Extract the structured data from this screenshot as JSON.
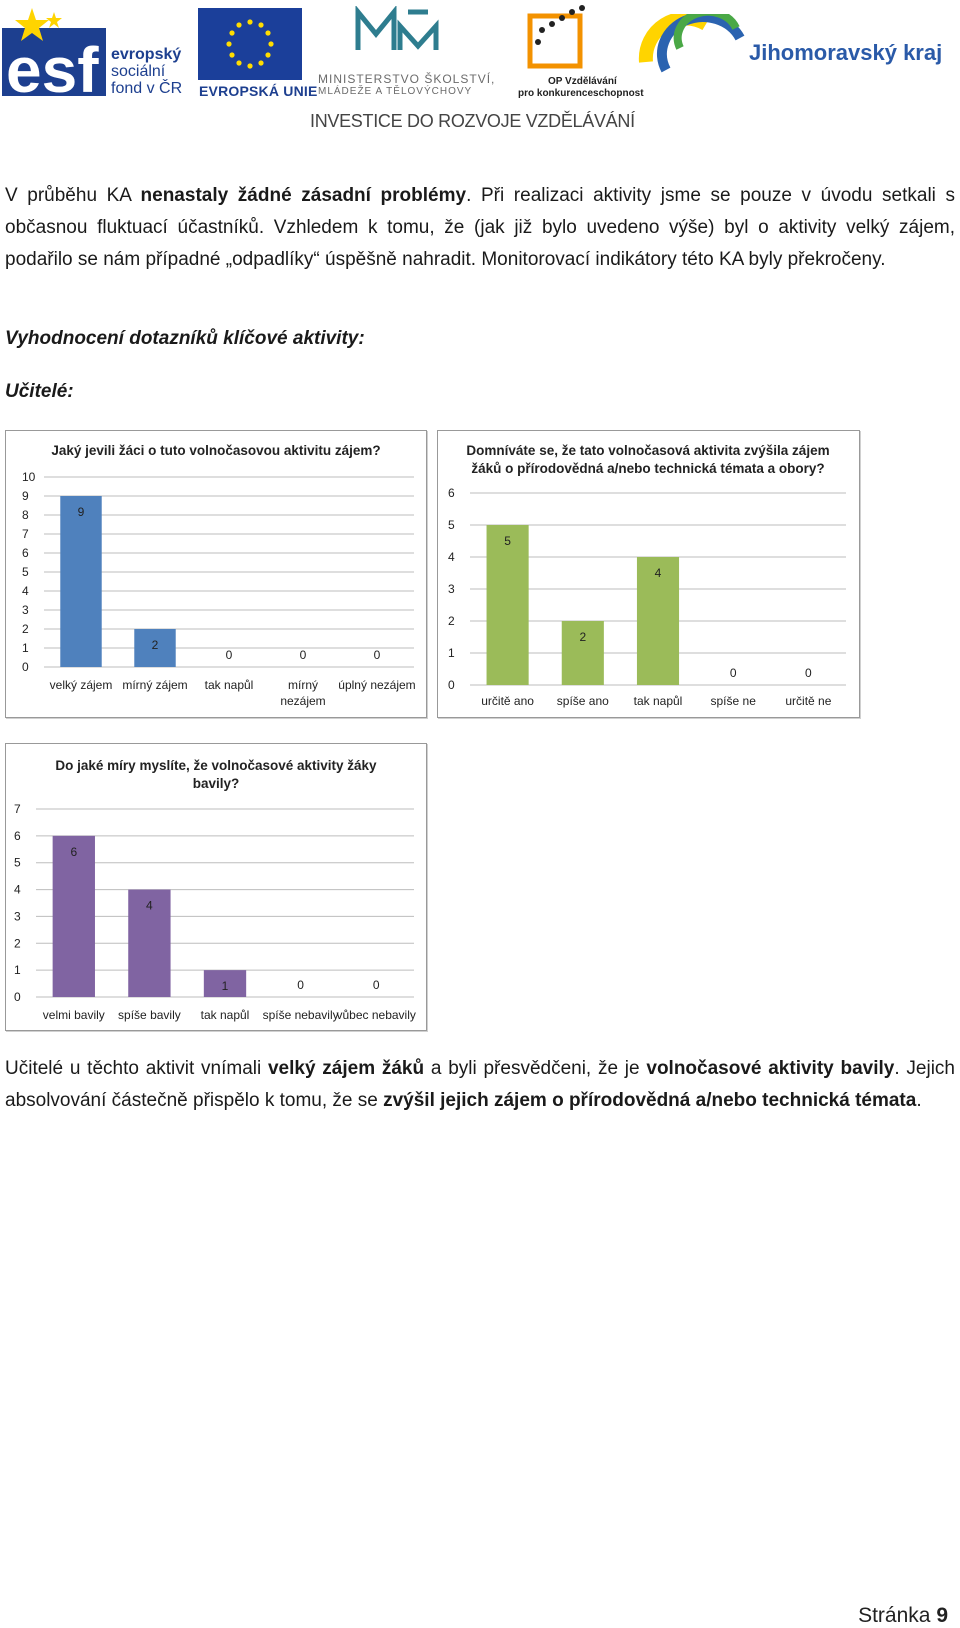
{
  "header": {
    "esf": {
      "line1": "evropský",
      "line2": "sociální",
      "line3": "fond v ČR"
    },
    "eu": {
      "label": "EVROPSKÁ UNIE"
    },
    "msmt": {
      "line1": "MINISTERSTVO ŠKOLSTVÍ,",
      "line2": "MLÁDEŽE A TĚLOVÝCHOVY"
    },
    "op": {
      "line1": "OP Vzdělávání",
      "line2": "pro konkurenceschopnost"
    },
    "jm": {
      "label": "Jihomoravský kraj"
    },
    "tagline": "INVESTICE DO ROZVOJE VZDĚLÁVÁNÍ"
  },
  "body": {
    "para1": {
      "a": "V průběhu KA ",
      "b": "nenastaly žádné zásadní problémy",
      "c": ". Při realizaci aktivity jsme se pouze v úvodu setkali s občasnou fluktuací účastníků. Vzhledem k tomu, že (jak již bylo uvedeno výše) byl o aktivity velký zájem, podařilo se nám případné „odpadlíky“ úspěšně nahradit. Monitorovací indikátory této KA byly překročeny."
    },
    "heading1": "Vyhodnocení dotazníků klíčové aktivity:",
    "heading2": "Učitelé:",
    "para2": {
      "a": "Učitelé u těchto aktivit vnímali ",
      "b": "velký zájem žáků",
      "c": " a byli přesvědčeni, že je ",
      "d": "volnočasové aktivity bavily",
      "e": ". Jejich absolvování částečně přispělo k tomu, že se ",
      "f": "zvýšil jejich zájem o přírodovědná a/nebo technická témata",
      "g": "."
    }
  },
  "chart_data": [
    {
      "type": "bar",
      "title_lines": [
        "Jaký jevili žáci o tuto volnočasovou aktivitu zájem?"
      ],
      "categories": [
        "velký zájem",
        "mírný zájem",
        "tak napůl",
        "mírný nezájem",
        "úplný nezájem"
      ],
      "category_lines": [
        [
          "velký zájem"
        ],
        [
          "mírný zájem"
        ],
        [
          "tak napůl"
        ],
        [
          "mírný",
          "nezájem"
        ],
        [
          "úplný nezájem"
        ]
      ],
      "values": [
        9,
        2,
        0,
        0,
        0
      ],
      "ylim": [
        0,
        10
      ],
      "yticks": [
        0,
        1,
        2,
        3,
        4,
        5,
        6,
        7,
        8,
        9,
        10
      ],
      "color": "#4f81bd",
      "grid": true,
      "legend": "none"
    },
    {
      "type": "bar",
      "title_lines": [
        "Domníváte se, že tato volnočasová aktivita zvýšila zájem",
        "žáků o přírodovědná a/nebo technická témata a obory?"
      ],
      "categories": [
        "určitě ano",
        "spíše ano",
        "tak napůl",
        "spíše ne",
        "určitě ne"
      ],
      "category_lines": [
        [
          "určitě ano"
        ],
        [
          "spíše ano"
        ],
        [
          "tak napůl"
        ],
        [
          "spíše ne"
        ],
        [
          "určitě ne"
        ]
      ],
      "values": [
        5,
        2,
        4,
        0,
        0
      ],
      "ylim": [
        0,
        6
      ],
      "yticks": [
        0,
        1,
        2,
        3,
        4,
        5,
        6
      ],
      "color": "#9bbb59",
      "grid": true,
      "legend": "none"
    },
    {
      "type": "bar",
      "title_lines": [
        "Do jaké míry myslíte, že volnočasové aktivity žáky",
        "bavily?"
      ],
      "categories": [
        "velmi bavily",
        "spíše bavily",
        "tak napůl",
        "spíše nebavily",
        "vůbec nebavily"
      ],
      "category_lines": [
        [
          "velmi bavily"
        ],
        [
          "spíše bavily"
        ],
        [
          "tak napůl"
        ],
        [
          "spíše nebavily"
        ],
        [
          "vůbec nebavily"
        ]
      ],
      "values": [
        6,
        4,
        1,
        0,
        0
      ],
      "ylim": [
        0,
        7
      ],
      "yticks": [
        0,
        1,
        2,
        3,
        4,
        5,
        6,
        7
      ],
      "color": "#8064a2",
      "grid": true,
      "legend": "none"
    }
  ],
  "footer": {
    "page_label": "Stránka",
    "page_number": "9"
  }
}
